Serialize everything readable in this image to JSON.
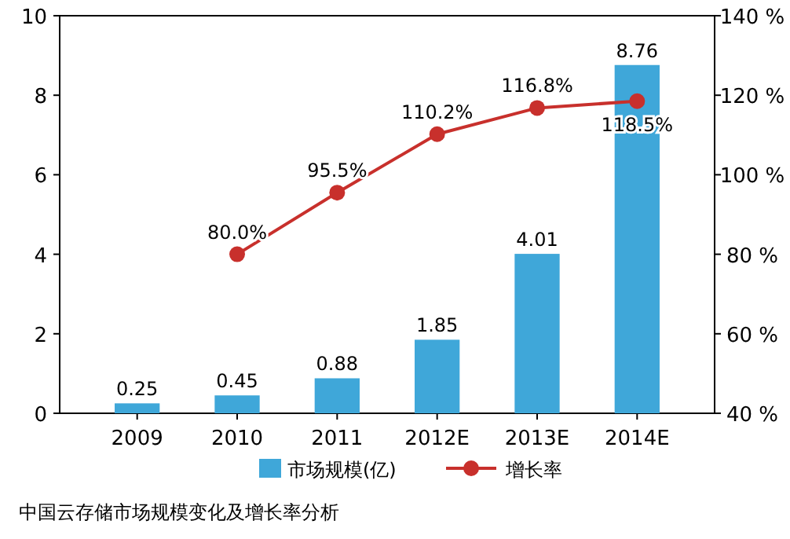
{
  "chart_data": {
    "type": "bar",
    "categories": [
      "2009",
      "2010",
      "2011",
      "2012E",
      "2013E",
      "2014E"
    ],
    "series": [
      {
        "name": "市场规模(亿)",
        "color": "#3fa7d9",
        "values": [
          0.25,
          0.45,
          0.88,
          1.85,
          4.01,
          8.76
        ]
      },
      {
        "name": "增长率",
        "type": "line",
        "axis": "y2",
        "color": "#c8302c",
        "values": [
          null,
          80.0,
          95.5,
          110.2,
          116.8,
          118.5
        ],
        "value_labels": [
          null,
          "80.0%",
          "95.5%",
          "110.2%",
          "116.8%",
          "118.5%"
        ]
      }
    ],
    "data_labels": true,
    "ylim": [
      0,
      10
    ],
    "yticks": [
      0,
      2,
      4,
      6,
      8,
      10
    ],
    "y2lim": [
      40,
      140
    ],
    "y2ticks": [
      {
        "value": 40,
        "label": "40 %"
      },
      {
        "value": 60,
        "label": "60 %"
      },
      {
        "value": 80,
        "label": "80 %"
      },
      {
        "value": 100,
        "label": "100 %"
      },
      {
        "value": 120,
        "label": "120 %"
      },
      {
        "value": 140,
        "label": "140 %"
      }
    ],
    "marker": "circle",
    "legend": "bottom",
    "grid": false,
    "annotations": [
      "中国云存储市场规模变化及增长率分析"
    ]
  }
}
